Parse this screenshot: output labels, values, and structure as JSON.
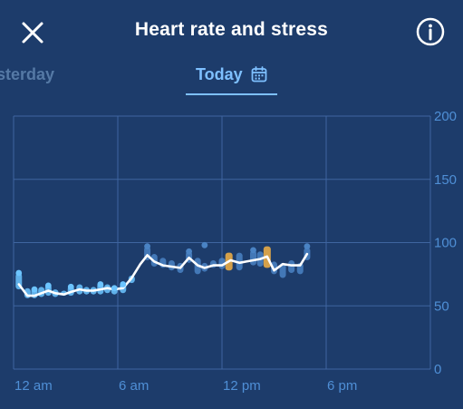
{
  "header": {
    "title": "Heart rate and stress",
    "close_icon": "close-icon",
    "info_icon": "info-icon"
  },
  "tabs": [
    {
      "label": "sterday",
      "active": false
    },
    {
      "label": "Today",
      "active": true,
      "icon": "calendar-icon"
    }
  ],
  "colors": {
    "background": "#1d3c6b",
    "accent": "#7ec0ff",
    "grid": "#3f65a0",
    "stress": "#d4a04a",
    "line": "#ffffff"
  },
  "chart_data": {
    "type": "line",
    "title": "",
    "x_ticks": [
      "12 am",
      "6 am",
      "12 pm",
      "6 pm"
    ],
    "y_ticks": [
      0,
      50,
      100,
      150,
      200
    ],
    "xlim": [
      0,
      24
    ],
    "ylim": [
      0,
      200
    ],
    "grid": true,
    "series": [
      {
        "line": true,
        "x": [
          0.3,
          0.8,
          1.2,
          1.6,
          2.0,
          2.4,
          2.9,
          3.3,
          3.8,
          4.2,
          4.6,
          5.0,
          5.4,
          5.8,
          6.3,
          6.8,
          7.3,
          7.7,
          8.1,
          8.6,
          9.1,
          9.6,
          10.1,
          10.6,
          11.0,
          11.5,
          12.0,
          12.5,
          13.0,
          13.4,
          13.8,
          14.2,
          14.6,
          15.0,
          15.5,
          16.0,
          16.5,
          16.9
        ],
        "y": [
          67,
          58,
          58,
          60,
          62,
          60,
          59,
          61,
          63,
          62,
          62,
          63,
          64,
          63,
          64,
          72,
          83,
          90,
          85,
          82,
          81,
          80,
          88,
          82,
          80,
          82,
          82,
          86,
          84,
          85,
          86,
          87,
          89,
          78,
          83,
          82,
          82,
          91
        ]
      },
      {
        "name": "",
        "bars": [
          {
            "x": 0.3,
            "low": 63,
            "high": 76
          },
          {
            "x": 0.8,
            "low": 56,
            "high": 64
          },
          {
            "x": 1.2,
            "low": 56,
            "high": 64
          },
          {
            "x": 1.6,
            "low": 57,
            "high": 65
          },
          {
            "x": 2.0,
            "low": 58,
            "high": 67
          },
          {
            "x": 2.4,
            "low": 57,
            "high": 63
          },
          {
            "x": 2.9,
            "low": 58,
            "high": 62
          },
          {
            "x": 3.3,
            "low": 58,
            "high": 66
          },
          {
            "x": 3.8,
            "low": 59,
            "high": 67
          },
          {
            "x": 4.2,
            "low": 59,
            "high": 65
          },
          {
            "x": 4.6,
            "low": 59,
            "high": 65
          },
          {
            "x": 5.0,
            "low": 59,
            "high": 68
          },
          {
            "x": 5.4,
            "low": 60,
            "high": 67
          },
          {
            "x": 5.8,
            "low": 59,
            "high": 66
          },
          {
            "x": 6.3,
            "low": 60,
            "high": 68
          },
          {
            "x": 6.8,
            "low": 68,
            "high": 74
          },
          {
            "x": 7.7,
            "low": 86,
            "high": 97
          },
          {
            "x": 8.1,
            "low": 81,
            "high": 91
          },
          {
            "x": 8.6,
            "low": 80,
            "high": 88
          },
          {
            "x": 9.1,
            "low": 78,
            "high": 86
          },
          {
            "x": 9.6,
            "low": 76,
            "high": 84
          },
          {
            "x": 10.1,
            "low": 84,
            "high": 93
          },
          {
            "x": 10.6,
            "low": 75,
            "high": 88
          },
          {
            "x": 11.0,
            "low": 77,
            "high": 84
          },
          {
            "x": 11.5,
            "low": 80,
            "high": 86
          },
          {
            "x": 12.0,
            "low": 79,
            "high": 88
          },
          {
            "x": 13.0,
            "low": 78,
            "high": 92
          },
          {
            "x": 13.8,
            "low": 82,
            "high": 94
          },
          {
            "x": 14.2,
            "low": 81,
            "high": 93
          },
          {
            "x": 15.0,
            "low": 75,
            "high": 85
          },
          {
            "x": 15.5,
            "low": 72,
            "high": 84
          },
          {
            "x": 16.0,
            "low": 76,
            "high": 86
          },
          {
            "x": 16.5,
            "low": 75,
            "high": 84
          },
          {
            "x": 16.9,
            "low": 86,
            "high": 96
          }
        ]
      },
      {
        "name": "",
        "points": [
          {
            "x": 0.3,
            "y": 76
          },
          {
            "x": 1.2,
            "y": 63
          },
          {
            "x": 2.0,
            "y": 66
          },
          {
            "x": 3.3,
            "y": 65
          },
          {
            "x": 5.0,
            "y": 67
          },
          {
            "x": 5.8,
            "y": 64
          },
          {
            "x": 6.3,
            "y": 67
          },
          {
            "x": 7.7,
            "y": 97
          },
          {
            "x": 10.1,
            "y": 93
          },
          {
            "x": 11.0,
            "y": 98
          },
          {
            "x": 13.8,
            "y": 94
          },
          {
            "x": 16.9,
            "y": 97
          }
        ]
      },
      {
        "name": "",
        "bars": [
          {
            "x": 12.4,
            "low": 78,
            "high": 92
          },
          {
            "x": 14.6,
            "low": 80,
            "high": 97
          }
        ]
      }
    ]
  }
}
